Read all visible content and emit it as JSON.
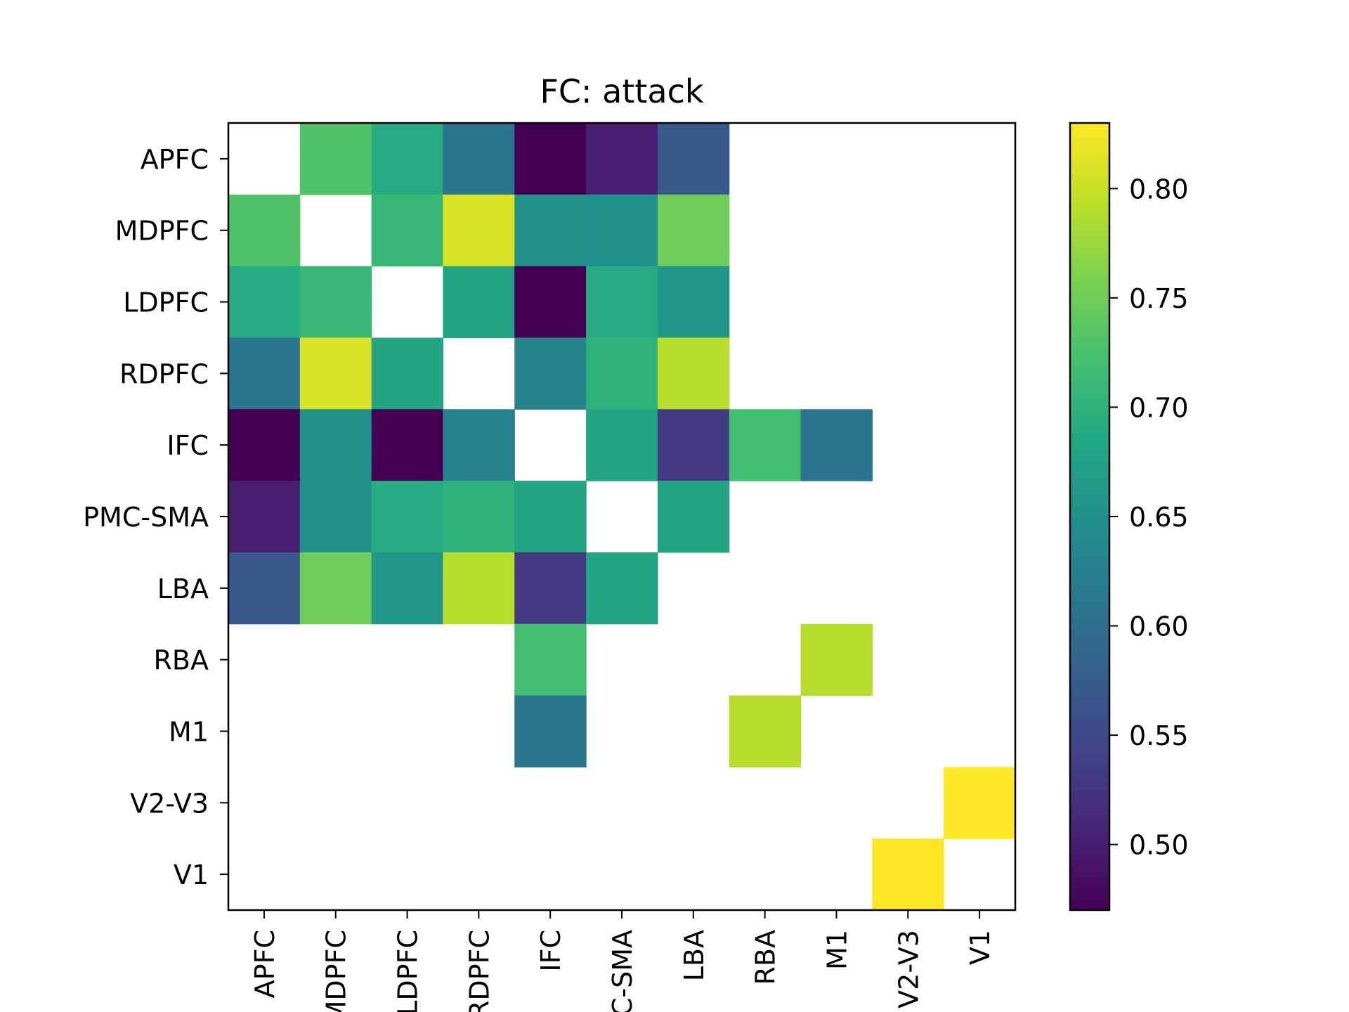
{
  "chart_data": {
    "type": "heatmap",
    "title": "FC: attack",
    "xlabel": "",
    "ylabel": "",
    "x_labels": [
      "APFC",
      "MDPFC",
      "LDPFC",
      "RDPFC",
      "IFC",
      "PMC-SMA",
      "LBA",
      "RBA",
      "M1",
      "V2-V3",
      "V1"
    ],
    "y_labels": [
      "APFC",
      "MDPFC",
      "LDPFC",
      "RDPFC",
      "IFC",
      "PMC-SMA",
      "LBA",
      "RBA",
      "M1",
      "V2-V3",
      "V1"
    ],
    "values": [
      [
        null,
        0.73,
        0.69,
        0.61,
        0.47,
        0.5,
        0.57,
        null,
        null,
        null,
        null
      ],
      [
        0.73,
        null,
        0.71,
        0.81,
        0.65,
        0.65,
        0.75,
        null,
        null,
        null,
        null
      ],
      [
        0.69,
        0.71,
        null,
        0.68,
        0.47,
        0.69,
        0.66,
        null,
        null,
        null,
        null
      ],
      [
        0.61,
        0.81,
        0.68,
        null,
        0.63,
        0.7,
        0.79,
        null,
        null,
        null,
        null
      ],
      [
        0.47,
        0.65,
        0.47,
        0.63,
        null,
        0.68,
        0.53,
        0.72,
        0.61,
        null,
        null
      ],
      [
        0.5,
        0.65,
        0.69,
        0.7,
        0.68,
        null,
        0.68,
        null,
        null,
        null,
        null
      ],
      [
        0.57,
        0.75,
        0.66,
        0.79,
        0.53,
        0.68,
        null,
        null,
        null,
        null,
        null
      ],
      [
        null,
        null,
        null,
        null,
        0.72,
        null,
        null,
        null,
        0.79,
        null,
        null
      ],
      [
        null,
        null,
        null,
        null,
        0.61,
        null,
        null,
        0.79,
        null,
        null,
        null
      ],
      [
        null,
        null,
        null,
        null,
        null,
        null,
        null,
        null,
        null,
        null,
        0.83
      ],
      [
        null,
        null,
        null,
        null,
        null,
        null,
        null,
        null,
        null,
        0.83,
        null
      ]
    ],
    "colormap": "viridis",
    "colorbar": {
      "range": [
        0.47,
        0.83
      ],
      "ticks": [
        0.5,
        0.55,
        0.6,
        0.65,
        0.7,
        0.75,
        0.8
      ],
      "tick_labels": [
        "0.50",
        "0.55",
        "0.60",
        "0.65",
        "0.70",
        "0.75",
        "0.80"
      ]
    },
    "grid": false
  }
}
